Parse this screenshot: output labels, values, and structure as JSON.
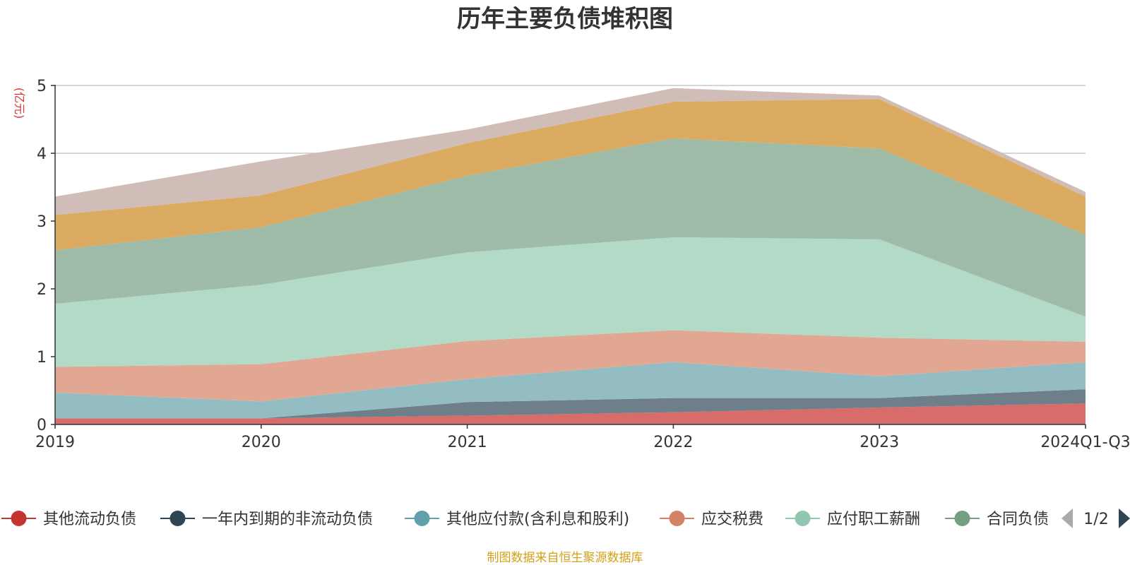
{
  "colors": {
    "axis": "#333333",
    "grid": "#c8c8c8",
    "unit": "#e03030",
    "source": "#d4a017",
    "pager_active": "#2f4554",
    "pager_inactive": "#aaaaaa"
  },
  "legend": {
    "page_text": "1/2"
  },
  "source": {
    "text": "制图数据来自恒生聚源数据库"
  },
  "chart_data": {
    "type": "area",
    "stacked": true,
    "title": "历年主要负债堆积图",
    "ylabel": "(亿元)",
    "xlabel": "",
    "categories": [
      "2019",
      "2020",
      "2021",
      "2022",
      "2023",
      "2024Q1-Q3"
    ],
    "y_ticks": [
      "0",
      "1",
      "2",
      "3",
      "4",
      "5"
    ],
    "ylim": [
      0,
      5
    ],
    "grid": true,
    "legend_position": "bottom",
    "series": [
      {
        "name": "其他流动负债",
        "color": "#c23531",
        "fill": "#d76c6b",
        "values": [
          0.09,
          0.09,
          0.13,
          0.18,
          0.25,
          0.31
        ]
      },
      {
        "name": "一年内到期的非流动负债",
        "color": "#2f4554",
        "fill": "#6e7f89",
        "values": [
          0.0,
          0.0,
          0.2,
          0.21,
          0.14,
          0.21
        ]
      },
      {
        "name": "其他应付款(含利息和股利)",
        "color": "#61a0a8",
        "fill": "#93bdc3",
        "values": [
          0.38,
          0.25,
          0.34,
          0.53,
          0.32,
          0.4
        ]
      },
      {
        "name": "应交税费",
        "color": "#d48265",
        "fill": "#e2a793",
        "values": [
          0.38,
          0.55,
          0.56,
          0.47,
          0.57,
          0.3
        ]
      },
      {
        "name": "应付职工薪酬",
        "color": "#91c7ae",
        "fill": "#b2dac7",
        "values": [
          0.93,
          1.17,
          1.31,
          1.37,
          1.45,
          0.37
        ]
      },
      {
        "name": "合同负债",
        "color": "#749f83",
        "fill": "#9fbca8",
        "values": [
          0.79,
          0.85,
          1.13,
          1.46,
          1.34,
          1.21
        ]
      },
      {
        "name": "",
        "color": "#ca8622",
        "fill": "#dbab62",
        "values": [
          0.52,
          0.47,
          0.48,
          0.54,
          0.73,
          0.56
        ]
      },
      {
        "name": "",
        "color": "#bda29a",
        "fill": "#d0bdb7",
        "values": [
          0.27,
          0.5,
          0.2,
          0.2,
          0.05,
          0.07
        ]
      }
    ]
  }
}
